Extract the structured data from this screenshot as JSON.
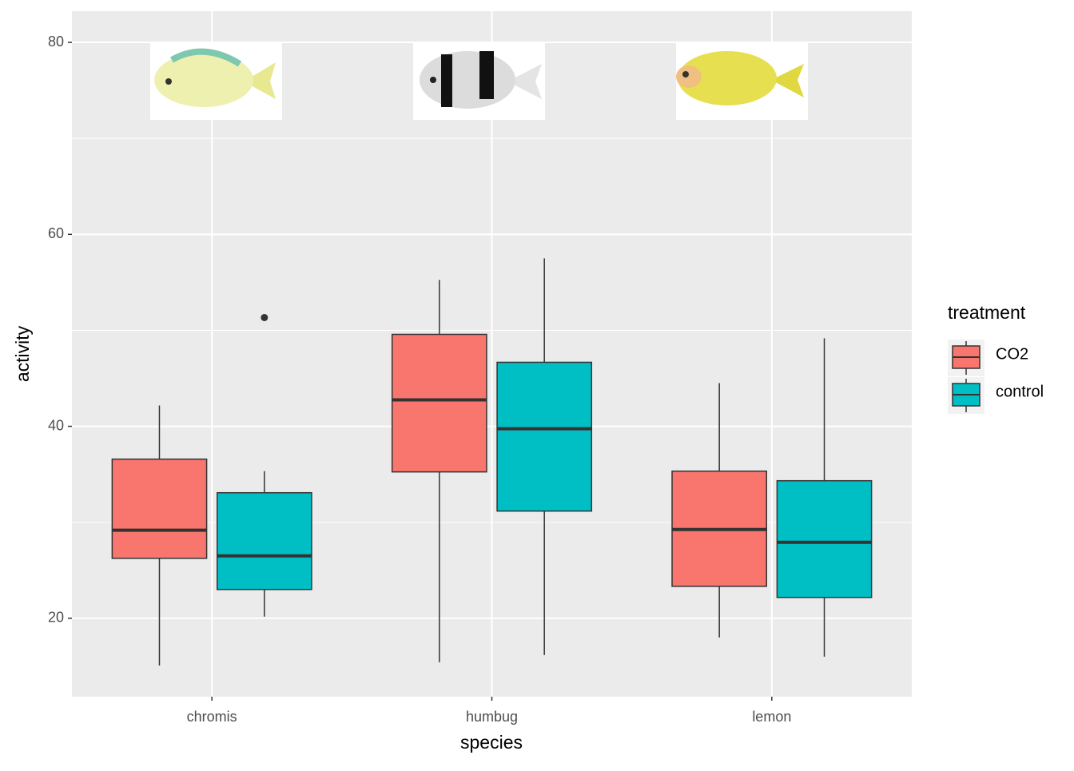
{
  "chart_data": {
    "type": "boxplot",
    "x_label": "species",
    "y_label": "activity",
    "legend_title": "treatment",
    "categories": [
      "chromis",
      "humbug",
      "lemon"
    ],
    "ylim": [
      11.83,
      83.25
    ],
    "yticks": [
      20,
      40,
      60,
      80
    ],
    "minor_yticks": [
      30,
      50,
      70
    ],
    "grid": true,
    "legend_position": "right",
    "series": [
      {
        "name": "CO2",
        "color": "#F8766D",
        "lower": [
          15.08,
          15.42,
          18.0
        ],
        "q1": [
          26.25,
          35.25,
          23.33
        ],
        "median": [
          29.17,
          42.75,
          29.25
        ],
        "q3": [
          36.58,
          49.58,
          35.33
        ],
        "upper": [
          42.17,
          55.25,
          44.5
        ],
        "outliers": [
          [],
          [],
          []
        ]
      },
      {
        "name": "control",
        "color": "#00BFC4",
        "lower": [
          20.17,
          16.17,
          16.0
        ],
        "q1": [
          23.0,
          31.17,
          22.17
        ],
        "median": [
          26.5,
          39.75,
          27.92
        ],
        "q3": [
          33.08,
          46.67,
          34.33
        ],
        "upper": [
          35.33,
          57.5,
          49.17
        ],
        "outliers": [
          [
            51.33
          ],
          [],
          []
        ]
      }
    ]
  }
}
